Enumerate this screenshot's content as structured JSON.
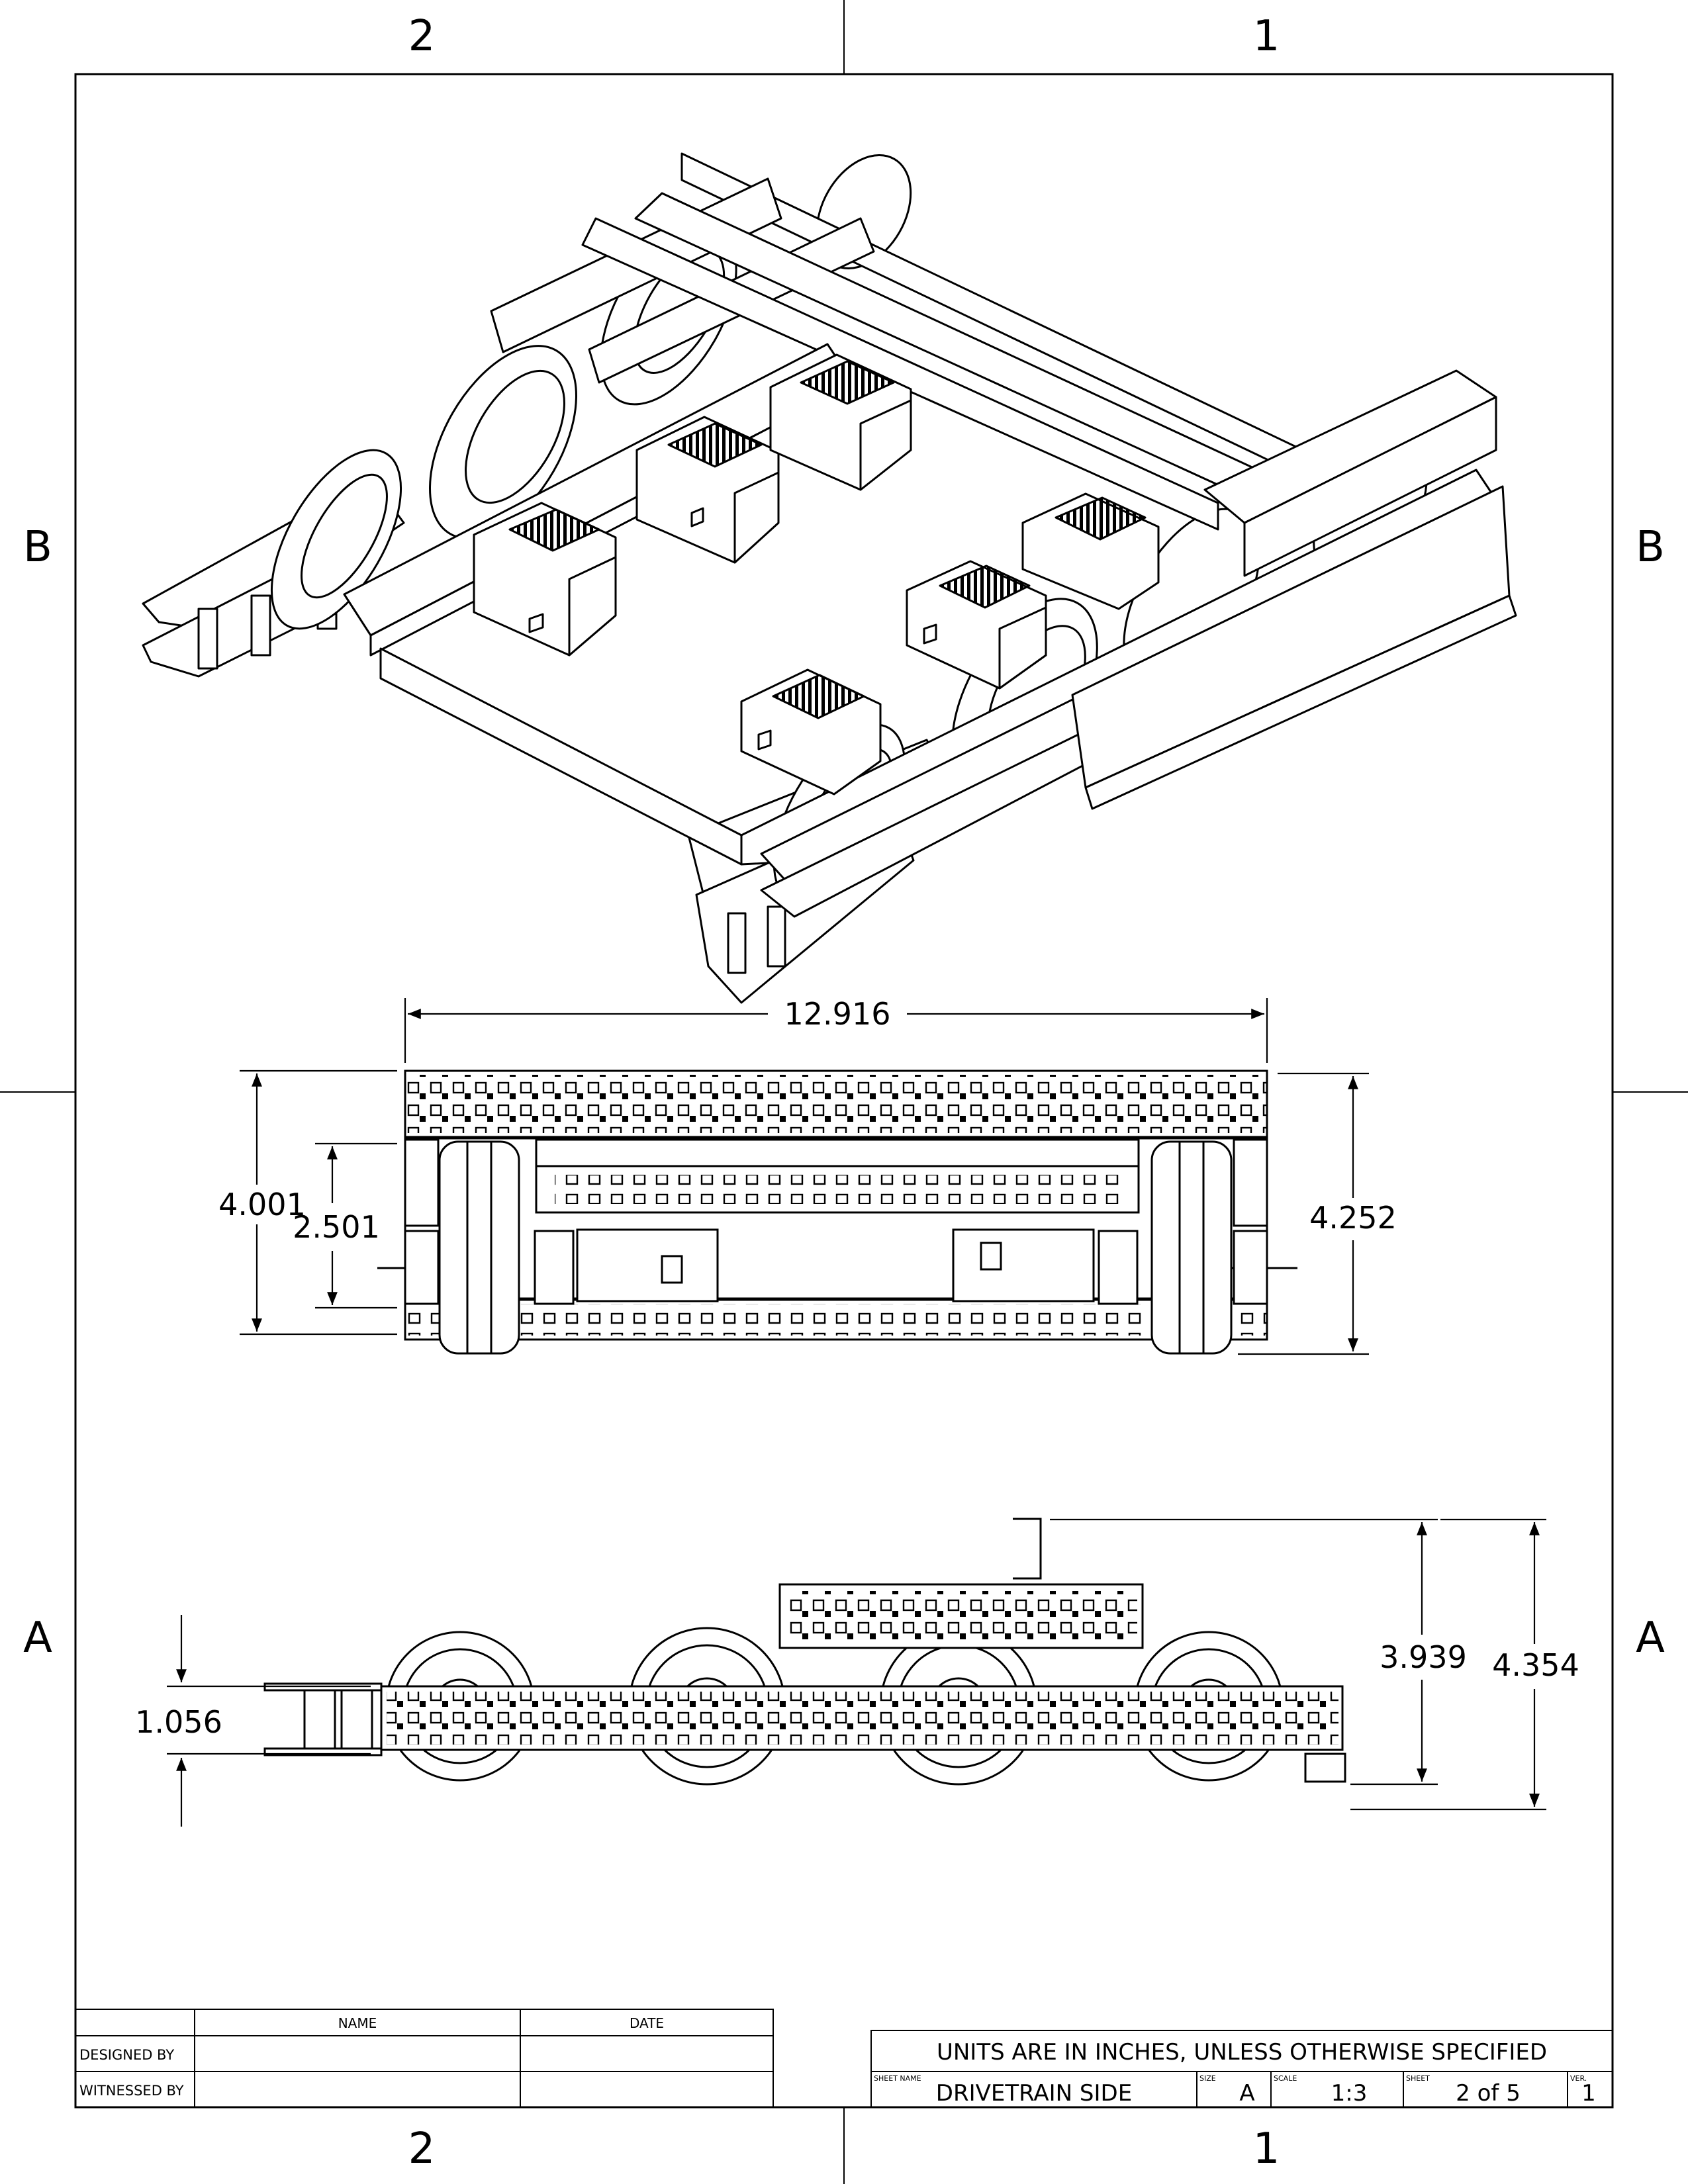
{
  "zones": {
    "top_left": "2",
    "top_right": "1",
    "bottom_left": "2",
    "bottom_right": "1",
    "left_upper": "B",
    "right_upper": "B",
    "left_lower": "A",
    "right_lower": "A"
  },
  "dimensions": {
    "width_top": "12.916",
    "height_left_outer": "4.001",
    "height_left_inner": "2.501",
    "height_right": "4.252",
    "side_left": "1.056",
    "side_right_inner": "3.939",
    "side_right_outer": "4.354"
  },
  "signature_block": {
    "col_name": "NAME",
    "col_date": "DATE",
    "row_designed": "DESIGNED BY",
    "row_witnessed": "WITNESSED BY"
  },
  "title_block": {
    "units_note": "UNITS ARE IN INCHES, UNLESS OTHERWISE SPECIFIED",
    "sheet_name_label": "SHEET NAME",
    "sheet_name": "DRIVETRAIN SIDE",
    "size_label": "SIZE",
    "size": "A",
    "scale_label": "SCALE",
    "scale": "1:3",
    "sheet_label": "SHEET",
    "sheet": "2 of 5",
    "ver_label": "VER.",
    "ver": "1"
  },
  "colors": {
    "line": "#000000",
    "paper": "#ffffff",
    "panel": "#f2f2f2"
  }
}
